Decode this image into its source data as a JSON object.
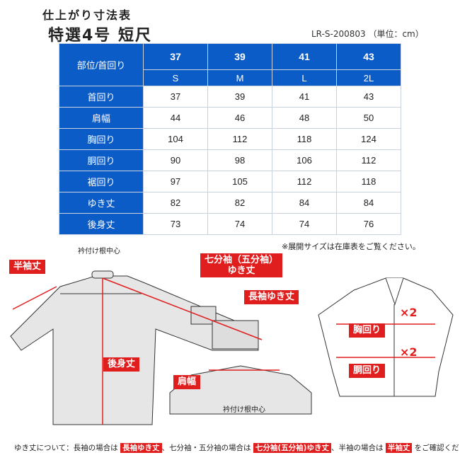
{
  "header": {
    "subtitle": "仕上がり寸法表",
    "title": "特選4号 短尺",
    "code": "LR-S-200803 （単位：cm）"
  },
  "table": {
    "corner": "部位/首回り",
    "neck_sizes": [
      "37",
      "39",
      "41",
      "43"
    ],
    "sizes": [
      "S",
      "M",
      "L",
      "2L"
    ],
    "rows": [
      {
        "label": "首回り",
        "values": [
          "37",
          "39",
          "41",
          "43"
        ]
      },
      {
        "label": "肩幅",
        "values": [
          "44",
          "46",
          "48",
          "50"
        ]
      },
      {
        "label": "胸回り",
        "values": [
          "104",
          "112",
          "118",
          "124"
        ]
      },
      {
        "label": "胴回り",
        "values": [
          "90",
          "98",
          "106",
          "112"
        ]
      },
      {
        "label": "裾回り",
        "values": [
          "97",
          "105",
          "112",
          "118"
        ]
      },
      {
        "label": "ゆき丈",
        "values": [
          "82",
          "82",
          "84",
          "84"
        ]
      },
      {
        "label": "後身丈",
        "values": [
          "73",
          "74",
          "74",
          "76"
        ]
      }
    ]
  },
  "note": "※展開サイズは在庫表をご覧ください。",
  "diagram": {
    "collar_center": "衿付け根中心",
    "half_sleeve": "半袖丈",
    "three_quarter_1": "七分袖（五分袖）",
    "three_quarter_2": "ゆき丈",
    "long_sleeve": "長袖ゆき丈",
    "back_length": "後身丈",
    "shoulder": "肩幅",
    "collar_center_2": "衿付け根中心",
    "chest": "胸回り",
    "waist": "胴回り",
    "times2a": "×2",
    "times2b": "×2"
  },
  "footer": {
    "p1": "ゆき丈について：長袖の場合は",
    "t1": "長袖ゆき丈",
    "p2": "、七分袖・五分袖の場合は",
    "t2": "七分袖(五分袖)ゆき丈",
    "p3": "、半袖の場合は",
    "t3": "半袖丈",
    "p4": "をご確認ください。"
  },
  "colors": {
    "table_header": "#0c5cc7",
    "accent_red": "#e01e1e"
  }
}
